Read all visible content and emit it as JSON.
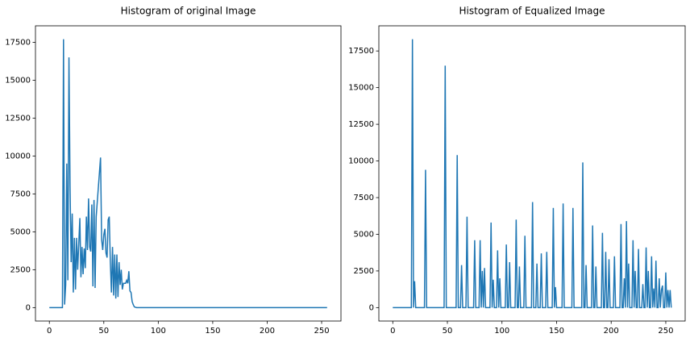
{
  "chart_data": [
    {
      "type": "line",
      "title": "Histogram of original Image",
      "x": [
        0,
        12,
        13,
        14,
        15,
        16,
        17,
        18,
        19,
        20,
        21,
        22,
        23,
        24,
        25,
        26,
        28,
        29,
        30,
        31,
        32,
        33,
        34,
        35,
        36,
        37,
        38,
        39,
        40,
        41,
        42,
        43,
        47,
        48,
        49,
        50,
        51,
        52,
        53,
        54,
        55,
        56,
        57,
        58,
        59,
        60,
        61,
        62,
        63,
        64,
        65,
        66,
        67,
        68,
        70,
        71,
        72,
        73,
        74,
        75,
        76,
        77,
        78,
        80,
        255
      ],
      "series": [
        {
          "color": "#1f77b4",
          "values": [
            0,
            0,
            17700,
            200,
            1500,
            9500,
            1800,
            16500,
            8000,
            3000,
            6200,
            1000,
            4600,
            1200,
            4600,
            2500,
            5900,
            2000,
            4000,
            2200,
            3900,
            2600,
            6000,
            3800,
            7200,
            4000,
            3700,
            6800,
            1400,
            7100,
            1300,
            6000,
            9900,
            4500,
            3800,
            4800,
            5200,
            3600,
            3300,
            5800,
            6000,
            3000,
            1000,
            4000,
            800,
            3500,
            600,
            3500,
            700,
            3000,
            1500,
            2500,
            1200,
            1600,
            1600,
            1800,
            1600,
            2400,
            1100,
            1000,
            400,
            200,
            50,
            0,
            0
          ]
        }
      ],
      "xlim": [
        -12.75,
        267.75
      ],
      "xticks": [
        0,
        50,
        100,
        150,
        200,
        250
      ],
      "ylim": [
        -885,
        18585
      ],
      "yticks": [
        0,
        2500,
        5000,
        7500,
        10000,
        12500,
        15000,
        17500
      ]
    },
    {
      "type": "line",
      "title": "Histogram of Equalized Image",
      "x": [
        0,
        17,
        18,
        19,
        20,
        21,
        29,
        30,
        31,
        47,
        48,
        49,
        58,
        59,
        60,
        62,
        63,
        64,
        67,
        68,
        69,
        74,
        75,
        76,
        79,
        80,
        81,
        82,
        83,
        84,
        85,
        89,
        90,
        91,
        92,
        93,
        95,
        96,
        97,
        98,
        99,
        103,
        104,
        105,
        106,
        107,
        108,
        112,
        113,
        114,
        115,
        116,
        117,
        120,
        121,
        122,
        127,
        128,
        129,
        131,
        132,
        133,
        135,
        136,
        137,
        140,
        141,
        142,
        146,
        147,
        148,
        149,
        150,
        155,
        156,
        157,
        164,
        165,
        166,
        173,
        174,
        175,
        176,
        177,
        178,
        182,
        183,
        184,
        185,
        186,
        187,
        191,
        192,
        193,
        194,
        195,
        196,
        197,
        198,
        199,
        202,
        203,
        204,
        208,
        209,
        210,
        211,
        212,
        213,
        214,
        215,
        216,
        217,
        219,
        220,
        221,
        222,
        223,
        224,
        225,
        226,
        228,
        229,
        230,
        231,
        232,
        233,
        234,
        235,
        236,
        237,
        238,
        239,
        240,
        241,
        242,
        243,
        244,
        245,
        246,
        247,
        248,
        249,
        250,
        251,
        252,
        253,
        254,
        255
      ],
      "series": [
        {
          "color": "#1f77b4",
          "values": [
            0,
            0,
            18300,
            0,
            1800,
            0,
            0,
            9400,
            0,
            0,
            16500,
            0,
            0,
            10400,
            0,
            0,
            2900,
            0,
            0,
            6200,
            0,
            0,
            4600,
            0,
            0,
            4600,
            0,
            2500,
            0,
            2700,
            0,
            0,
            5800,
            0,
            1900,
            0,
            0,
            3900,
            0,
            2000,
            0,
            0,
            4300,
            0,
            0,
            3100,
            0,
            0,
            6000,
            0,
            0,
            2800,
            0,
            0,
            4900,
            0,
            0,
            7200,
            0,
            0,
            3000,
            0,
            0,
            3700,
            0,
            0,
            3800,
            0,
            0,
            6800,
            0,
            1400,
            0,
            0,
            7100,
            0,
            0,
            6800,
            0,
            0,
            9900,
            0,
            0,
            2900,
            0,
            0,
            5600,
            0,
            0,
            2800,
            0,
            0,
            5100,
            0,
            0,
            3800,
            0,
            0,
            3300,
            0,
            0,
            3500,
            0,
            0,
            5700,
            0,
            0,
            2000,
            0,
            5900,
            0,
            3000,
            0,
            0,
            4600,
            0,
            2500,
            0,
            0,
            4000,
            0,
            0,
            1600,
            0,
            0,
            4100,
            0,
            2500,
            0,
            0,
            3500,
            0,
            1300,
            0,
            3200,
            0,
            0,
            2000,
            0,
            1200,
            1500,
            0,
            0,
            2400,
            0,
            1200,
            0,
            1200,
            0
          ]
        }
      ],
      "xlim": [
        -12.75,
        267.75
      ],
      "xticks": [
        0,
        50,
        100,
        150,
        200,
        250
      ],
      "ylim": [
        -915,
        19215
      ],
      "yticks": [
        0,
        2500,
        5000,
        7500,
        10000,
        12500,
        15000,
        17500
      ]
    }
  ]
}
